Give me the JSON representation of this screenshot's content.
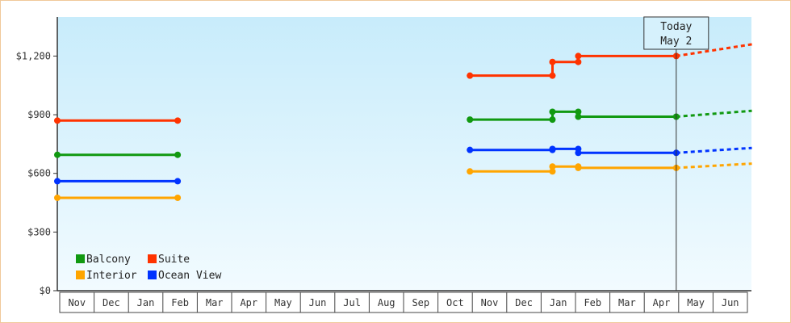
{
  "chart_data": {
    "type": "line",
    "y_ticks": [
      "$0",
      "$300",
      "$600",
      "$900",
      "$1,200"
    ],
    "ylim": [
      0,
      1400
    ],
    "x_labels": [
      "Nov",
      "Dec",
      "Jan",
      "Feb",
      "Mar",
      "Apr",
      "May",
      "Jun",
      "Jul",
      "Aug",
      "Sep",
      "Oct",
      "Nov",
      "Dec",
      "Jan",
      "Feb",
      "Mar",
      "Apr",
      "May",
      "Jun"
    ],
    "today": {
      "line1": "Today",
      "line2": "May 2",
      "month_pos": 18.0
    },
    "legend": [
      {
        "key": "balcony",
        "label": "Balcony",
        "color": "#119911"
      },
      {
        "key": "suite",
        "label": "Suite",
        "color": "#ff3300"
      },
      {
        "key": "interior",
        "label": "Interior",
        "color": "#ffa500"
      },
      {
        "key": "ocean",
        "label": "Ocean View",
        "color": "#0033ff"
      }
    ],
    "series": [
      {
        "key": "suite",
        "color": "#ff3300",
        "segments": [
          [
            [
              0.0,
              870
            ],
            [
              3.5,
              870
            ]
          ],
          [
            [
              12.0,
              1100
            ],
            [
              14.4,
              1100
            ],
            [
              14.4,
              1170
            ],
            [
              15.15,
              1170
            ],
            [
              15.15,
              1200
            ],
            [
              18.0,
              1200
            ]
          ]
        ],
        "projection": [
          [
            18.0,
            1200
          ],
          [
            20.2,
            1260
          ]
        ],
        "markers": [
          [
            0.0,
            870
          ],
          [
            3.5,
            870
          ],
          [
            12.0,
            1100
          ],
          [
            14.4,
            1100
          ],
          [
            14.4,
            1170
          ],
          [
            15.15,
            1170
          ],
          [
            15.15,
            1200
          ],
          [
            18.0,
            1200
          ]
        ]
      },
      {
        "key": "balcony",
        "color": "#119911",
        "segments": [
          [
            [
              0.0,
              695
            ],
            [
              3.5,
              695
            ]
          ],
          [
            [
              12.0,
              875
            ],
            [
              14.4,
              875
            ],
            [
              14.4,
              915
            ],
            [
              15.15,
              915
            ],
            [
              15.15,
              890
            ],
            [
              18.0,
              890
            ]
          ]
        ],
        "projection": [
          [
            18.0,
            890
          ],
          [
            20.2,
            920
          ]
        ],
        "markers": [
          [
            0.0,
            695
          ],
          [
            3.5,
            695
          ],
          [
            12.0,
            875
          ],
          [
            14.4,
            875
          ],
          [
            14.4,
            915
          ],
          [
            15.15,
            915
          ],
          [
            15.15,
            890
          ],
          [
            18.0,
            890
          ]
        ]
      },
      {
        "key": "ocean",
        "color": "#0033ff",
        "segments": [
          [
            [
              0.0,
              560
            ],
            [
              3.5,
              560
            ]
          ],
          [
            [
              12.0,
              720
            ],
            [
              14.4,
              720
            ],
            [
              14.4,
              725
            ],
            [
              15.15,
              725
            ],
            [
              15.15,
              705
            ],
            [
              18.0,
              705
            ]
          ]
        ],
        "projection": [
          [
            18.0,
            705
          ],
          [
            20.2,
            730
          ]
        ],
        "markers": [
          [
            0.0,
            560
          ],
          [
            3.5,
            560
          ],
          [
            12.0,
            720
          ],
          [
            14.4,
            720
          ],
          [
            14.4,
            725
          ],
          [
            15.15,
            725
          ],
          [
            15.15,
            705
          ],
          [
            18.0,
            705
          ]
        ]
      },
      {
        "key": "interior",
        "color": "#ffa500",
        "segments": [
          [
            [
              0.0,
              475
            ],
            [
              3.5,
              475
            ]
          ],
          [
            [
              12.0,
              610
            ],
            [
              14.4,
              610
            ],
            [
              14.4,
              635
            ],
            [
              15.15,
              635
            ],
            [
              15.15,
              628
            ],
            [
              18.0,
              628
            ]
          ]
        ],
        "projection": [
          [
            18.0,
            628
          ],
          [
            20.2,
            650
          ]
        ],
        "markers": [
          [
            0.0,
            475
          ],
          [
            3.5,
            475
          ],
          [
            12.0,
            610
          ],
          [
            14.4,
            610
          ],
          [
            14.4,
            635
          ],
          [
            15.15,
            635
          ],
          [
            15.15,
            628
          ],
          [
            18.0,
            628
          ]
        ]
      }
    ]
  }
}
